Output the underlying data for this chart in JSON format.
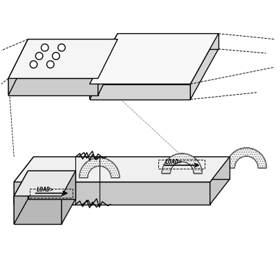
{
  "bg_color": "#ffffff",
  "line_color": "#000000",
  "hatch_color": "#555555",
  "figsize": [
    4.05,
    4.05
  ],
  "dpi": 100,
  "title": "",
  "load_text": "LOAD>",
  "load_text2": "LOAD>"
}
